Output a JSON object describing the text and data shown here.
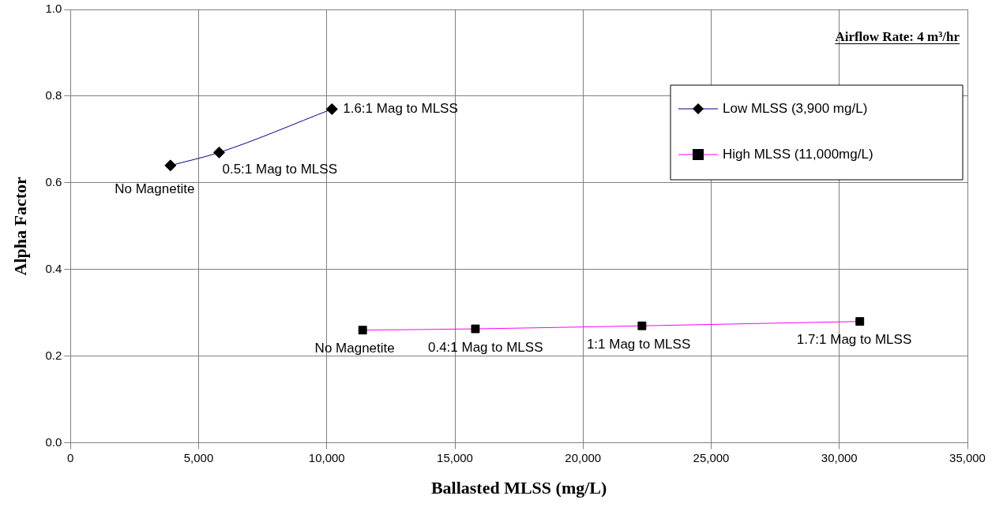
{
  "chart_data": {
    "type": "line",
    "xlabel": "Ballasted MLSS (mg/L)",
    "ylabel": "Alpha Factor",
    "xlim": [
      0,
      35000
    ],
    "xticks": [
      {
        "value": 0,
        "label": "0"
      },
      {
        "value": 5000,
        "label": "5,000"
      },
      {
        "value": 10000,
        "label": "10,000"
      },
      {
        "value": 15000,
        "label": "15,000"
      },
      {
        "value": 20000,
        "label": "20,000"
      },
      {
        "value": 25000,
        "label": "25,000"
      },
      {
        "value": 30000,
        "label": "30,000"
      },
      {
        "value": 35000,
        "label": "35,000"
      }
    ],
    "ylim": [
      0,
      1
    ],
    "yticks": [
      {
        "value": 0,
        "label": "0.0"
      },
      {
        "value": 0.2,
        "label": "0.2"
      },
      {
        "value": 0.4,
        "label": "0.4"
      },
      {
        "value": 0.6,
        "label": "0.6"
      },
      {
        "value": 0.8,
        "label": "0.8"
      },
      {
        "value": 1,
        "label": "1.0"
      }
    ],
    "grid": true,
    "legend": "top right",
    "line_style": "solid",
    "series": [
      {
        "name": "Low MLSS (3,900 mg/L)",
        "color": "#000080",
        "marker": "diamond",
        "x": [
          3900,
          5800,
          10200
        ],
        "values": [
          0.64,
          0.67,
          0.77
        ]
      },
      {
        "name": "High MLSS (11,000mg/L)",
        "color": "#ff00ff",
        "marker": "square",
        "x": [
          11400,
          15800,
          22300,
          30800
        ],
        "values": [
          0.26,
          0.263,
          0.27,
          0.28
        ]
      }
    ],
    "annotations": [
      "Airflow Rate: 4 m³/hr",
      {
        "text": "No Magnetite",
        "x": 3900,
        "y": 0.64
      },
      {
        "text": "0.5:1 Mag to MLSS",
        "x": 5800,
        "y": 0.67
      },
      {
        "text": "1.6:1 Mag to MLSS",
        "x": 10200,
        "y": 0.77
      },
      {
        "text": "No Magnetite",
        "x": 11400,
        "y": 0.26
      },
      {
        "text": "0.4:1 Mag to MLSS",
        "x": 15800,
        "y": 0.263
      },
      {
        "text": "1:1 Mag to MLSS",
        "x": 22300,
        "y": 0.27
      },
      {
        "text": "1.7:1 Mag to MLSS",
        "x": 30800,
        "y": 0.28
      }
    ]
  }
}
